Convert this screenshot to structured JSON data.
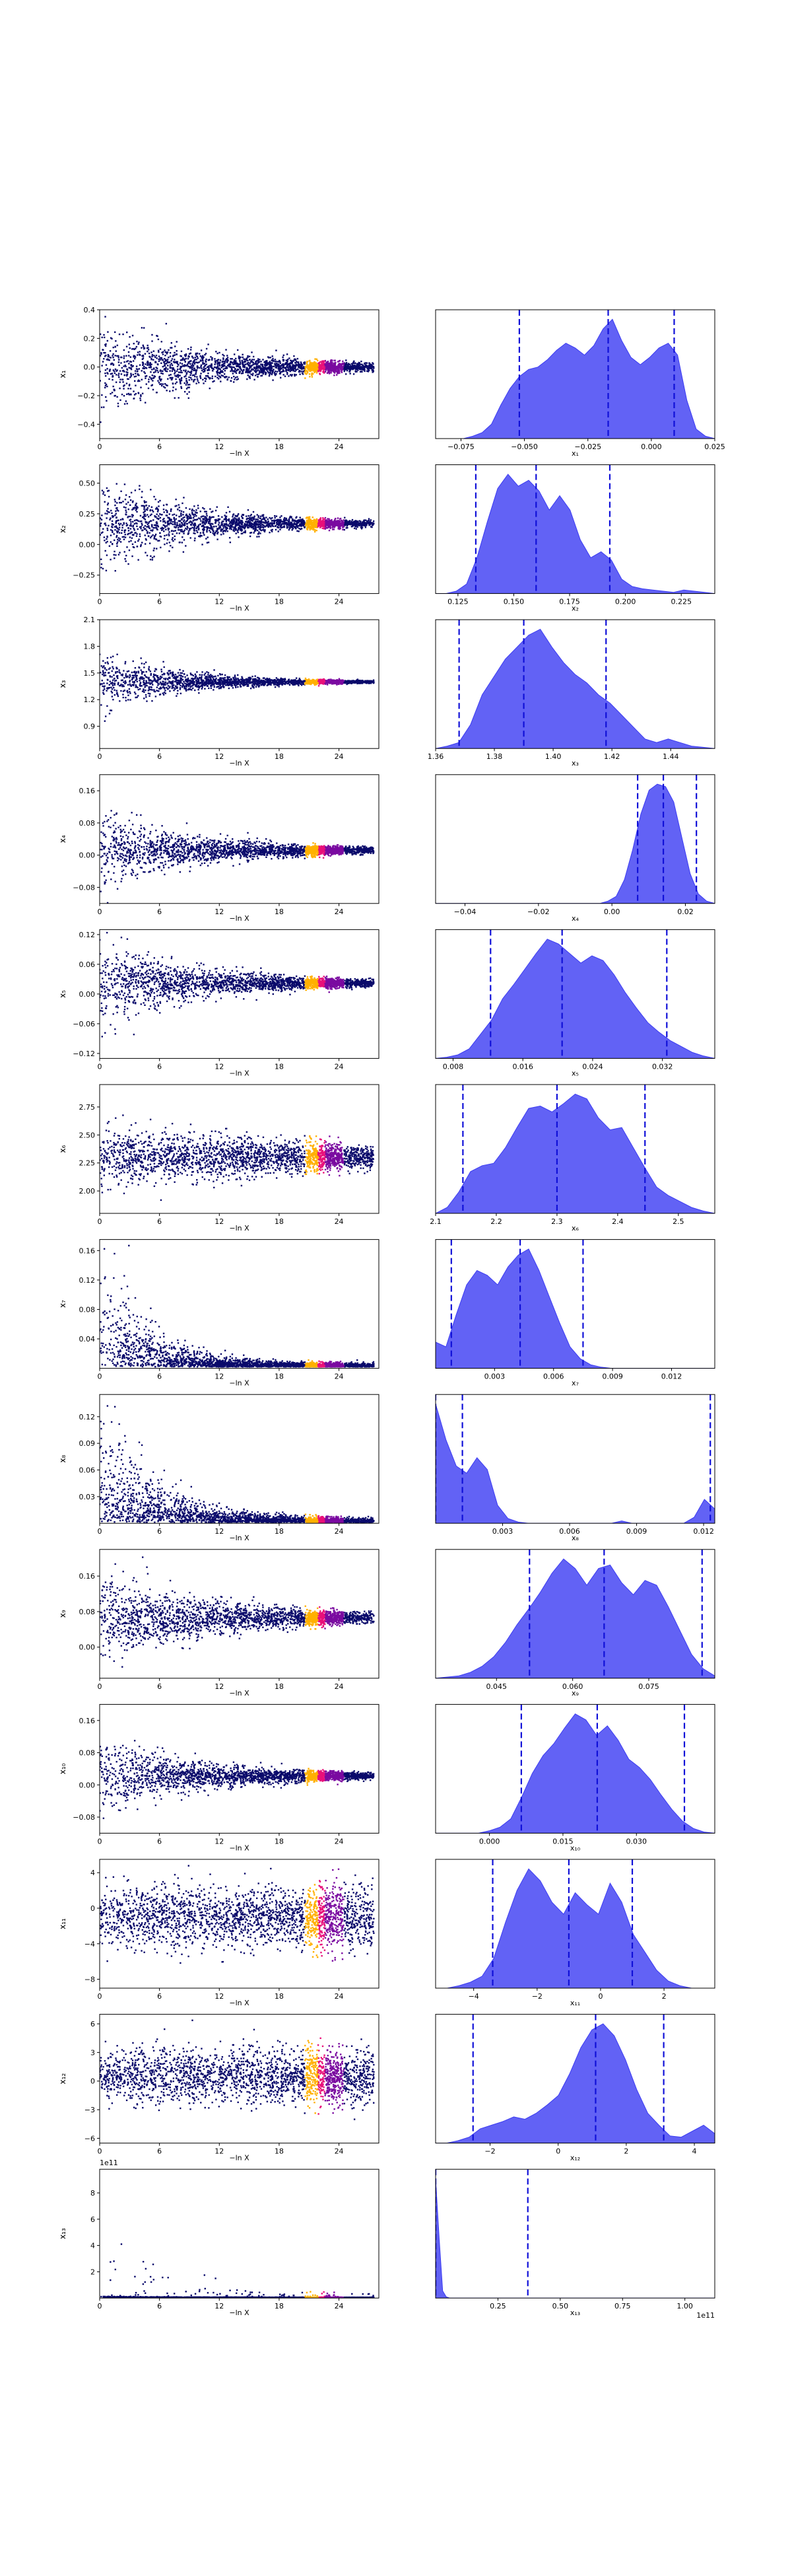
{
  "figure": {
    "background": "#ffffff"
  },
  "colors": {
    "kde_fill": "#3b3bf2",
    "kde_fill_opacity": 0.8,
    "quantile_line": "#1010d8",
    "scatter_low": "#0a0a6b",
    "scatter_mid": "#7a0aa0",
    "scatter_hot": "#e8107a",
    "scatter_peak": "#ffb000"
  },
  "chart_data": [
    {
      "type": "scatter",
      "row": 0,
      "ylabel": "x₁",
      "xlabel": "−ln X",
      "xticks": [
        "0",
        "6",
        "12",
        "18",
        "24"
      ],
      "xlim": [
        0,
        28
      ],
      "yticks": [
        "−0.4",
        "−0.2",
        "0.0",
        "0.2",
        "0.4"
      ],
      "ylim": [
        -0.5,
        0.4
      ],
      "center": 0.0,
      "spread0": 0.28,
      "decay": 0.1
    },
    {
      "type": "area",
      "row": 0,
      "xlabel": "x₁",
      "xticks": [
        "−0.075",
        "−0.050",
        "−0.025",
        "0.000",
        "0.025"
      ],
      "xlim": [
        -0.085,
        0.025
      ],
      "quantiles": [
        -0.052,
        -0.017,
        0.009
      ],
      "density": [
        0,
        0,
        0,
        0,
        0.02,
        0.05,
        0.12,
        0.28,
        0.42,
        0.52,
        0.58,
        0.6,
        0.66,
        0.74,
        0.8,
        0.76,
        0.7,
        0.78,
        0.92,
        1.0,
        0.82,
        0.68,
        0.62,
        0.68,
        0.76,
        0.8,
        0.7,
        0.32,
        0.08,
        0.02,
        0
      ]
    },
    {
      "type": "scatter",
      "row": 1,
      "ylabel": "x₂",
      "xlabel": "−ln X",
      "xticks": [
        "0",
        "6",
        "12",
        "18",
        "24"
      ],
      "xlim": [
        0,
        28
      ],
      "yticks": [
        "−0.25",
        "0.00",
        "0.25",
        "0.50"
      ],
      "ylim": [
        -0.4,
        0.65
      ],
      "center": 0.17,
      "spread0": 0.35,
      "decay": 0.12
    },
    {
      "type": "area",
      "row": 1,
      "xlabel": "x₂",
      "xticks": [
        "0.125",
        "0.150",
        "0.175",
        "0.200",
        "0.225"
      ],
      "xlim": [
        0.115,
        0.24
      ],
      "quantiles": [
        0.133,
        0.16,
        0.193
      ],
      "density": [
        0,
        0,
        0.02,
        0.08,
        0.3,
        0.6,
        0.88,
        1.0,
        0.9,
        0.95,
        0.86,
        0.7,
        0.82,
        0.7,
        0.45,
        0.3,
        0.35,
        0.28,
        0.12,
        0.06,
        0.04,
        0.03,
        0.02,
        0.01,
        0.03,
        0.02,
        0.01,
        0
      ]
    },
    {
      "type": "scatter",
      "row": 2,
      "ylabel": "x₃",
      "xlabel": "−ln X",
      "xticks": [
        "0",
        "6",
        "12",
        "18",
        "24"
      ],
      "xlim": [
        0,
        28
      ],
      "yticks": [
        "0.9",
        "1.2",
        "1.5",
        "1.8",
        "2.1"
      ],
      "ylim": [
        0.65,
        2.1
      ],
      "center": 1.4,
      "spread0": 0.3,
      "decay": 0.14
    },
    {
      "type": "area",
      "row": 2,
      "xlabel": "x₃",
      "xticks": [
        "1.36",
        "1.38",
        "1.40",
        "1.42",
        "1.44"
      ],
      "xlim": [
        1.36,
        1.455
      ],
      "quantiles": [
        1.368,
        1.39,
        1.418
      ],
      "density": [
        0,
        0.02,
        0.05,
        0.2,
        0.45,
        0.6,
        0.75,
        0.85,
        0.95,
        1.0,
        0.85,
        0.72,
        0.62,
        0.55,
        0.45,
        0.38,
        0.28,
        0.18,
        0.08,
        0.05,
        0.08,
        0.05,
        0.02,
        0.01,
        0
      ]
    },
    {
      "type": "scatter",
      "row": 3,
      "ylabel": "x₄",
      "xlabel": "−ln X",
      "xticks": [
        "0",
        "6",
        "12",
        "18",
        "24"
      ],
      "xlim": [
        0,
        28
      ],
      "yticks": [
        "−0.08",
        "0.00",
        "0.08",
        "0.16"
      ],
      "ylim": [
        -0.12,
        0.2
      ],
      "center": 0.012,
      "spread0": 0.08,
      "decay": 0.1
    },
    {
      "type": "area",
      "row": 3,
      "xlabel": "x₄",
      "xticks": [
        "−0.04",
        "−0.02",
        "0.00",
        "0.02"
      ],
      "xlim": [
        -0.048,
        0.028
      ],
      "quantiles": [
        0.007,
        0.014,
        0.023
      ],
      "density": [
        0,
        0,
        0,
        0,
        0,
        0,
        0,
        0,
        0,
        0,
        0,
        0,
        0,
        0,
        0,
        0,
        0,
        0,
        0,
        0,
        0,
        0.02,
        0.06,
        0.2,
        0.45,
        0.75,
        0.95,
        1.0,
        0.98,
        0.85,
        0.55,
        0.25,
        0.08,
        0.02,
        0
      ]
    },
    {
      "type": "scatter",
      "row": 4,
      "ylabel": "x₅",
      "xlabel": "−ln X",
      "xticks": [
        "0",
        "6",
        "12",
        "18",
        "24"
      ],
      "xlim": [
        0,
        28
      ],
      "yticks": [
        "−0.12",
        "−0.06",
        "0.00",
        "0.06",
        "0.12"
      ],
      "ylim": [
        -0.13,
        0.13
      ],
      "center": 0.022,
      "spread0": 0.07,
      "decay": 0.1
    },
    {
      "type": "area",
      "row": 4,
      "xlabel": "x₅",
      "xticks": [
        "0.008",
        "0.016",
        "0.024",
        "0.032"
      ],
      "xlim": [
        0.006,
        0.038
      ],
      "quantiles": [
        0.0123,
        0.0205,
        0.0325
      ],
      "density": [
        0,
        0.01,
        0.03,
        0.08,
        0.2,
        0.32,
        0.5,
        0.62,
        0.75,
        0.88,
        1.0,
        0.96,
        0.88,
        0.8,
        0.86,
        0.82,
        0.7,
        0.55,
        0.42,
        0.3,
        0.22,
        0.15,
        0.1,
        0.05,
        0.02,
        0
      ]
    },
    {
      "type": "scatter",
      "row": 5,
      "ylabel": "x₆",
      "xlabel": "−ln X",
      "xticks": [
        "0",
        "6",
        "12",
        "18",
        "24"
      ],
      "xlim": [
        0,
        28
      ],
      "yticks": [
        "2.00",
        "2.25",
        "2.50",
        "2.75"
      ],
      "ylim": [
        1.8,
        2.95
      ],
      "center": 2.3,
      "spread0": 0.22,
      "decay": 0.04
    },
    {
      "type": "area",
      "row": 5,
      "xlabel": "x₆",
      "xticks": [
        "2.1",
        "2.2",
        "2.3",
        "2.4",
        "2.5"
      ],
      "xlim": [
        2.1,
        2.56
      ],
      "quantiles": [
        2.145,
        2.3,
        2.445
      ],
      "density": [
        0,
        0.05,
        0.18,
        0.35,
        0.4,
        0.42,
        0.55,
        0.72,
        0.88,
        0.9,
        0.85,
        0.92,
        1.0,
        0.96,
        0.8,
        0.7,
        0.72,
        0.55,
        0.38,
        0.22,
        0.15,
        0.1,
        0.05,
        0.02,
        0
      ]
    },
    {
      "type": "scatter",
      "row": 6,
      "ylabel": "x₇",
      "xlabel": "−ln X",
      "xticks": [
        "0",
        "6",
        "12",
        "18",
        "24"
      ],
      "xlim": [
        0,
        28
      ],
      "yticks": [
        "0.04",
        "0.08",
        "0.12",
        "0.16"
      ],
      "ylim": [
        0.0,
        0.175
      ],
      "center": 0.002,
      "spread0": 0.09,
      "decay": 0.22,
      "positive": true
    },
    {
      "type": "area",
      "row": 6,
      "xlabel": "x₇",
      "xticks": [
        "0.003",
        "0.006",
        "0.009",
        "0.012"
      ],
      "xlim": [
        0.0,
        0.0142
      ],
      "quantiles": [
        0.0008,
        0.0043,
        0.0075
      ],
      "density": [
        0.22,
        0.18,
        0.45,
        0.7,
        0.82,
        0.78,
        0.7,
        0.85,
        0.95,
        1.0,
        0.82,
        0.6,
        0.38,
        0.18,
        0.08,
        0.03,
        0.01,
        0,
        0,
        0,
        0,
        0,
        0,
        0,
        0,
        0,
        0,
        0
      ]
    },
    {
      "type": "scatter",
      "row": 7,
      "ylabel": "x₈",
      "xlabel": "−ln X",
      "xticks": [
        "0",
        "6",
        "12",
        "18",
        "24"
      ],
      "xlim": [
        0,
        28
      ],
      "yticks": [
        "0.03",
        "0.06",
        "0.09",
        "0.12"
      ],
      "ylim": [
        0.0,
        0.145
      ],
      "center": 0.001,
      "spread0": 0.08,
      "decay": 0.2,
      "positive": true
    },
    {
      "type": "area",
      "row": 7,
      "xlabel": "x₈",
      "xticks": [
        "0.003",
        "0.006",
        "0.009",
        "0.012"
      ],
      "xlim": [
        0.0,
        0.0125
      ],
      "quantiles": [
        0.0,
        0.0012,
        0.0123
      ],
      "density": [
        1.0,
        0.7,
        0.48,
        0.42,
        0.55,
        0.45,
        0.15,
        0.04,
        0.01,
        0,
        0,
        0,
        0,
        0,
        0,
        0,
        0,
        0,
        0.02,
        0,
        0,
        0,
        0,
        0,
        0,
        0.05,
        0.2,
        0.12
      ]
    },
    {
      "type": "scatter",
      "row": 8,
      "ylabel": "x₉",
      "xlabel": "−ln X",
      "xticks": [
        "0",
        "6",
        "12",
        "18",
        "24"
      ],
      "xlim": [
        0,
        28
      ],
      "yticks": [
        "0.00",
        "0.08",
        "0.16"
      ],
      "ylim": [
        -0.07,
        0.22
      ],
      "center": 0.066,
      "spread0": 0.09,
      "decay": 0.09
    },
    {
      "type": "area",
      "row": 8,
      "xlabel": "x₉",
      "xticks": [
        "0.045",
        "0.060",
        "0.075"
      ],
      "xlim": [
        0.033,
        0.088
      ],
      "quantiles": [
        0.0515,
        0.0662,
        0.0855
      ],
      "density": [
        0,
        0.01,
        0.02,
        0.05,
        0.1,
        0.18,
        0.3,
        0.45,
        0.58,
        0.72,
        0.88,
        1.0,
        0.92,
        0.78,
        0.92,
        0.95,
        0.8,
        0.7,
        0.82,
        0.78,
        0.6,
        0.4,
        0.2,
        0.08,
        0.02
      ]
    },
    {
      "type": "scatter",
      "row": 9,
      "ylabel": "x₁₀",
      "xlabel": "−ln X",
      "xticks": [
        "0",
        "6",
        "12",
        "18",
        "24"
      ],
      "xlim": [
        0,
        28
      ],
      "yticks": [
        "−0.08",
        "0.00",
        "0.08",
        "0.16"
      ],
      "ylim": [
        -0.12,
        0.2
      ],
      "center": 0.022,
      "spread0": 0.08,
      "decay": 0.1
    },
    {
      "type": "area",
      "row": 9,
      "xlabel": "x₁₀",
      "xticks": [
        "0.000",
        "0.015",
        "0.030"
      ],
      "xlim": [
        -0.011,
        0.046
      ],
      "quantiles": [
        0.0065,
        0.022,
        0.0398
      ],
      "density": [
        0,
        0,
        0,
        0,
        0,
        0.02,
        0.05,
        0.12,
        0.3,
        0.5,
        0.65,
        0.75,
        0.88,
        1.0,
        0.95,
        0.82,
        0.9,
        0.78,
        0.62,
        0.55,
        0.45,
        0.32,
        0.2,
        0.1,
        0.04,
        0.01,
        0
      ]
    },
    {
      "type": "scatter",
      "row": 10,
      "ylabel": "x₁₁",
      "xlabel": "−ln X",
      "xticks": [
        "0",
        "6",
        "12",
        "18",
        "24"
      ],
      "xlim": [
        0,
        28
      ],
      "yticks": [
        "−8",
        "−4",
        "0",
        "4"
      ],
      "ylim": [
        -9,
        5.5
      ],
      "center": -1.0,
      "spread0": 3.0,
      "decay": 0.0
    },
    {
      "type": "area",
      "row": 10,
      "xlabel": "x₁₁",
      "xticks": [
        "−4",
        "−2",
        "0",
        "2"
      ],
      "xlim": [
        -5.2,
        3.6
      ],
      "quantiles": [
        -3.4,
        -1.0,
        1.0
      ],
      "density": [
        0,
        0,
        0.02,
        0.05,
        0.1,
        0.25,
        0.55,
        0.82,
        1.0,
        0.9,
        0.72,
        0.62,
        0.8,
        0.7,
        0.62,
        0.88,
        0.72,
        0.45,
        0.3,
        0.15,
        0.06,
        0.02,
        0,
        0,
        0
      ]
    },
    {
      "type": "scatter",
      "row": 11,
      "ylabel": "x₁₂",
      "xlabel": "−ln X",
      "xticks": [
        "0",
        "6",
        "12",
        "18",
        "24"
      ],
      "xlim": [
        0,
        28
      ],
      "yticks": [
        "−6",
        "−3",
        "0",
        "3",
        "6"
      ],
      "ylim": [
        -6.5,
        7.0
      ],
      "center": 0.5,
      "spread0": 2.5,
      "decay": 0.0
    },
    {
      "type": "area",
      "row": 11,
      "xlabel": "x₁₂",
      "xticks": [
        "−2",
        "0",
        "2",
        "4"
      ],
      "xlim": [
        -3.6,
        4.6
      ],
      "quantiles": [
        -2.5,
        1.1,
        3.1
      ],
      "density": [
        0,
        0,
        0.02,
        0.05,
        0.12,
        0.15,
        0.18,
        0.22,
        0.2,
        0.25,
        0.32,
        0.4,
        0.58,
        0.8,
        0.95,
        1.0,
        0.9,
        0.7,
        0.45,
        0.25,
        0.15,
        0.06,
        0.05,
        0.1,
        0.15,
        0.08
      ]
    },
    {
      "type": "scatter",
      "row": 12,
      "ylabel": "x₁₃",
      "xlabel": "−ln X",
      "xticks": [
        "0",
        "6",
        "12",
        "18",
        "24"
      ],
      "xlim": [
        0,
        28
      ],
      "yticks": [
        "2",
        "4",
        "6",
        "8"
      ],
      "ylim": [
        0,
        9.8
      ],
      "offset_label": "1e11",
      "center": 0.05,
      "spread0": 1.0,
      "decay": 0.2,
      "positive": true,
      "sparse": true
    },
    {
      "type": "area",
      "row": 12,
      "xlabel": "x₁₃",
      "xticks": [
        "0.25",
        "0.50",
        "0.75",
        "1.00"
      ],
      "xlim": [
        0.0,
        1.12
      ],
      "offset_label": "1e11",
      "quantiles": [
        0.0,
        0.0,
        0.37
      ],
      "density": [
        1.0,
        0.5,
        0.06,
        0.01,
        0,
        0,
        0,
        0,
        0,
        0,
        0,
        0,
        0,
        0,
        0,
        0,
        0,
        0,
        0,
        0,
        0,
        0,
        0,
        0,
        0,
        0,
        0,
        0,
        0,
        0,
        0,
        0,
        0,
        0,
        0,
        0,
        0,
        0,
        0,
        0,
        0,
        0,
        0,
        0,
        0,
        0,
        0,
        0,
        0,
        0,
        0,
        0,
        0,
        0,
        0,
        0,
        0,
        0,
        0,
        0,
        0,
        0,
        0,
        0,
        0,
        0,
        0,
        0,
        0,
        0,
        0,
        0,
        0,
        0,
        0,
        0,
        0,
        0,
        0,
        0
      ]
    }
  ]
}
